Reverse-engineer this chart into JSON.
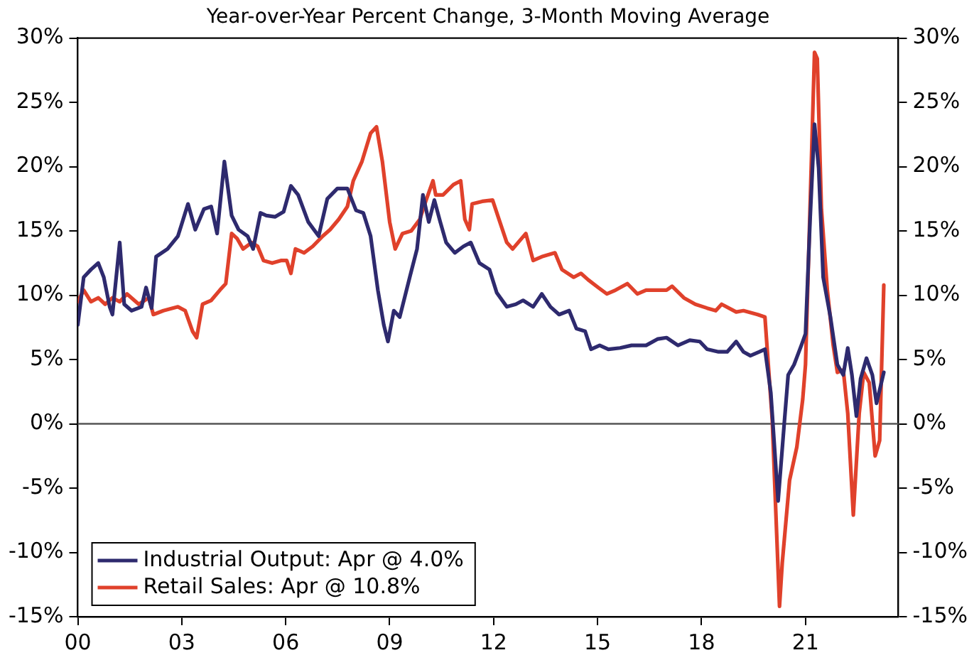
{
  "chart_data": {
    "type": "line",
    "title": "Year-over-Year Percent Change, 3-Month Moving Average",
    "xlim": [
      2000,
      2023.68
    ],
    "xticks": [
      {
        "value": 2000,
        "label": "00"
      },
      {
        "value": 2003,
        "label": "03"
      },
      {
        "value": 2006,
        "label": "06"
      },
      {
        "value": 2009,
        "label": "09"
      },
      {
        "value": 2012,
        "label": "12"
      },
      {
        "value": 2015,
        "label": "15"
      },
      {
        "value": 2018,
        "label": "18"
      },
      {
        "value": 2021,
        "label": "21"
      }
    ],
    "ylim": [
      -15,
      30
    ],
    "yticks": [
      {
        "value": -15,
        "label": "-15%"
      },
      {
        "value": -10,
        "label": "-10%"
      },
      {
        "value": -5,
        "label": "-5%"
      },
      {
        "value": 0,
        "label": "0%"
      },
      {
        "value": 5,
        "label": "5%"
      },
      {
        "value": 10,
        "label": "10%"
      },
      {
        "value": 15,
        "label": "15%"
      },
      {
        "value": 20,
        "label": "20%"
      },
      {
        "value": 25,
        "label": "25%"
      },
      {
        "value": 30,
        "label": "30%"
      }
    ],
    "y2lim": [
      -15,
      30
    ],
    "y2ticks": [
      {
        "value": -15,
        "label": "-15%"
      },
      {
        "value": -10,
        "label": "-10%"
      },
      {
        "value": -5,
        "label": "-5%"
      },
      {
        "value": 0,
        "label": "0%"
      },
      {
        "value": 5,
        "label": "5%"
      },
      {
        "value": 10,
        "label": "10%"
      },
      {
        "value": 15,
        "label": "15%"
      },
      {
        "value": 20,
        "label": "20%"
      },
      {
        "value": 25,
        "label": "25%"
      },
      {
        "value": 30,
        "label": "30%"
      }
    ],
    "grid": false,
    "legend": "bottom left",
    "marker": "none",
    "line_style": "solid",
    "ref_lines": [
      {
        "axis": "y",
        "value": 0,
        "color": "#555555"
      }
    ],
    "series": [
      {
        "name": "Industrial Output: Apr @ 4.0%",
        "color": "#2e2a6e",
        "x": [
          2000,
          2000.17,
          2000.38,
          2000.59,
          2000.75,
          2000.92,
          2001,
          2001.21,
          2001.34,
          2001.55,
          2001.84,
          2001.97,
          2002.13,
          2002.26,
          2002.59,
          2002.89,
          2003.18,
          2003.39,
          2003.64,
          2003.85,
          2004.02,
          2004.23,
          2004.44,
          2004.64,
          2004.9,
          2005.06,
          2005.27,
          2005.44,
          2005.69,
          2005.94,
          2006.15,
          2006.36,
          2006.65,
          2006.95,
          2007.2,
          2007.49,
          2007.78,
          2008.03,
          2008.24,
          2008.45,
          2008.66,
          2008.83,
          2008.95,
          2009.12,
          2009.29,
          2009.58,
          2009.79,
          2009.96,
          2010.13,
          2010.29,
          2010.46,
          2010.63,
          2010.88,
          2011.13,
          2011.34,
          2011.59,
          2011.88,
          2012.09,
          2012.38,
          2012.64,
          2012.85,
          2013.14,
          2013.39,
          2013.64,
          2013.89,
          2014.18,
          2014.39,
          2014.64,
          2014.81,
          2015.06,
          2015.31,
          2015.65,
          2015.98,
          2016.4,
          2016.74,
          2016.99,
          2017.32,
          2017.66,
          2017.95,
          2018.16,
          2018.49,
          2018.74,
          2019,
          2019.21,
          2019.41,
          2019.67,
          2019.83,
          2020,
          2020.21,
          2020.38,
          2020.5,
          2020.67,
          2020.88,
          2021,
          2021.13,
          2021.26,
          2021.38,
          2021.51,
          2021.72,
          2021.92,
          2022.09,
          2022.22,
          2022.34,
          2022.47,
          2022.59,
          2022.76,
          2022.93,
          2023.05,
          2023.26
        ],
        "values": [
          7.7,
          11.4,
          12,
          12.5,
          11.4,
          9.1,
          8.5,
          14.1,
          9.3,
          8.8,
          9.1,
          10.6,
          9,
          13,
          13.6,
          14.6,
          17.1,
          15.1,
          16.7,
          16.9,
          14.8,
          20.4,
          16.2,
          15.1,
          14.6,
          13.6,
          16.4,
          16.2,
          16.1,
          16.5,
          18.5,
          17.8,
          15.7,
          14.6,
          17.5,
          18.3,
          18.3,
          16.6,
          16.4,
          14.6,
          10.4,
          7.7,
          6.4,
          8.8,
          8.3,
          11.4,
          13.6,
          17.8,
          15.7,
          17.4,
          15.7,
          14.1,
          13.3,
          13.8,
          14.1,
          12.5,
          12,
          10.2,
          9.1,
          9.3,
          9.6,
          9.1,
          10.1,
          9.1,
          8.5,
          8.8,
          7.4,
          7.2,
          5.8,
          6.1,
          5.8,
          5.9,
          6.1,
          6.1,
          6.6,
          6.7,
          6.1,
          6.5,
          6.4,
          5.8,
          5.6,
          5.6,
          6.4,
          5.6,
          5.3,
          5.6,
          5.8,
          2.4,
          -6,
          -0.2,
          3.8,
          4.6,
          6.1,
          7,
          15.7,
          23.3,
          19.9,
          11.4,
          8.3,
          4.6,
          3.8,
          5.9,
          3.8,
          0.6,
          3.5,
          5.1,
          3.8,
          1.6,
          4.0
        ]
      },
      {
        "name": "Retail Sales: Apr @ 10.8%",
        "color": "#e0412b",
        "x": [
          2000,
          2000.17,
          2000.38,
          2000.59,
          2000.79,
          2001,
          2001.21,
          2001.42,
          2001.76,
          2002.05,
          2002.18,
          2002.47,
          2002.89,
          2003.1,
          2003.31,
          2003.43,
          2003.6,
          2003.85,
          2004.1,
          2004.27,
          2004.44,
          2004.6,
          2004.77,
          2005.02,
          2005.19,
          2005.36,
          2005.61,
          2005.86,
          2006.03,
          2006.15,
          2006.28,
          2006.53,
          2006.78,
          2007.07,
          2007.28,
          2007.53,
          2007.78,
          2007.95,
          2008.2,
          2008.45,
          2008.62,
          2008.79,
          2009,
          2009.16,
          2009.37,
          2009.62,
          2009.87,
          2010.04,
          2010.25,
          2010.33,
          2010.54,
          2010.84,
          2011.05,
          2011.17,
          2011.3,
          2011.38,
          2011.67,
          2011.97,
          2012.18,
          2012.38,
          2012.55,
          2012.93,
          2013.14,
          2013.39,
          2013.77,
          2013.97,
          2014.31,
          2014.52,
          2014.73,
          2015.02,
          2015.27,
          2015.52,
          2015.86,
          2016.15,
          2016.4,
          2016.74,
          2016.99,
          2017.15,
          2017.49,
          2017.82,
          2018.16,
          2018.41,
          2018.58,
          2019,
          2019.21,
          2019.62,
          2019.83,
          2020.04,
          2020.25,
          2020.33,
          2020.54,
          2020.75,
          2020.92,
          2021,
          2021.13,
          2021.26,
          2021.34,
          2021.46,
          2021.63,
          2021.8,
          2021.92,
          2022.09,
          2022.22,
          2022.38,
          2022.55,
          2022.68,
          2022.84,
          2023.01,
          2023.14,
          2023.26
        ],
        "values": [
          9.5,
          10.4,
          9.5,
          9.8,
          9.3,
          9.8,
          9.5,
          10.1,
          9.3,
          9.8,
          8.5,
          8.8,
          9.1,
          8.8,
          7.2,
          6.7,
          9.3,
          9.6,
          10.4,
          10.9,
          14.8,
          14.4,
          13.6,
          14.1,
          13.8,
          12.7,
          12.5,
          12.7,
          12.7,
          11.7,
          13.6,
          13.3,
          13.8,
          14.6,
          15.1,
          15.9,
          16.9,
          18.9,
          20.4,
          22.6,
          23.1,
          20.4,
          15.7,
          13.6,
          14.8,
          15,
          15.9,
          17.3,
          18.9,
          17.8,
          17.8,
          18.6,
          18.9,
          15.9,
          15.1,
          17.1,
          17.3,
          17.4,
          15.7,
          14.1,
          13.6,
          14.8,
          12.7,
          13,
          13.3,
          12,
          11.4,
          11.7,
          11.2,
          10.6,
          10.1,
          10.4,
          10.9,
          10.1,
          10.4,
          10.4,
          10.4,
          10.7,
          9.8,
          9.3,
          9,
          8.8,
          9.3,
          8.7,
          8.8,
          8.5,
          8.3,
          0.3,
          -14.2,
          -10.8,
          -4.4,
          -1.8,
          1.9,
          4.6,
          16.7,
          28.9,
          28.4,
          16.7,
          10.4,
          6.1,
          4,
          4.2,
          0.8,
          -7.1,
          0.8,
          4,
          3.2,
          -2.5,
          -1.3,
          10.8
        ]
      }
    ]
  }
}
